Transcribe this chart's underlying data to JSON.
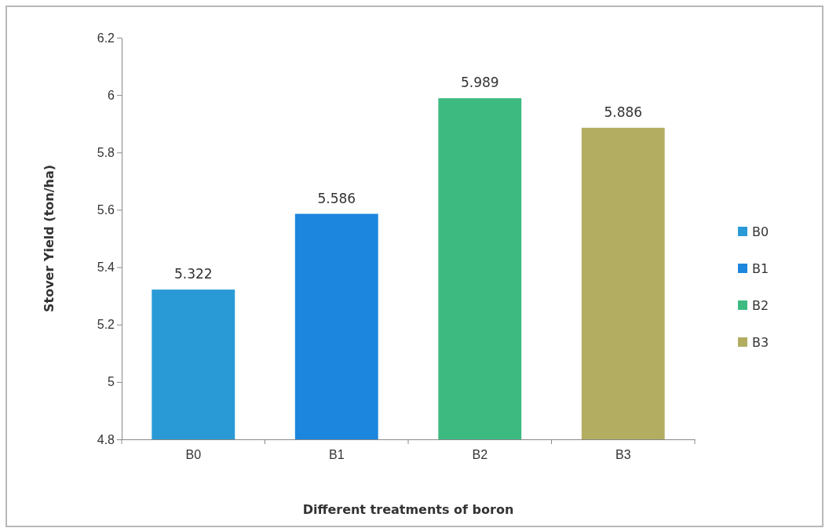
{
  "chart_data": {
    "type": "bar",
    "xlabel": "Different treatments of boron",
    "ylabel": "Stover Yield (ton/ha)",
    "categories": [
      "B0",
      "B1",
      "B2",
      "B3"
    ],
    "series": [
      {
        "name": "B0",
        "color": "#2a9ad6",
        "values": [
          5.322,
          null,
          null,
          null
        ]
      },
      {
        "name": "B1",
        "color": "#1c86de",
        "values": [
          null,
          5.586,
          null,
          null
        ]
      },
      {
        "name": "B2",
        "color": "#3dba80",
        "values": [
          null,
          null,
          5.989,
          null
        ]
      },
      {
        "name": "B3",
        "color": "#b3ad62",
        "values": [
          null,
          null,
          null,
          5.886
        ]
      }
    ],
    "ylim": [
      4.8,
      6.2
    ],
    "yticks": [
      4.8,
      5,
      5.2,
      5.4,
      5.6,
      5.8,
      6,
      6.2
    ],
    "grid": false,
    "legend": "right",
    "data_labels": true
  }
}
